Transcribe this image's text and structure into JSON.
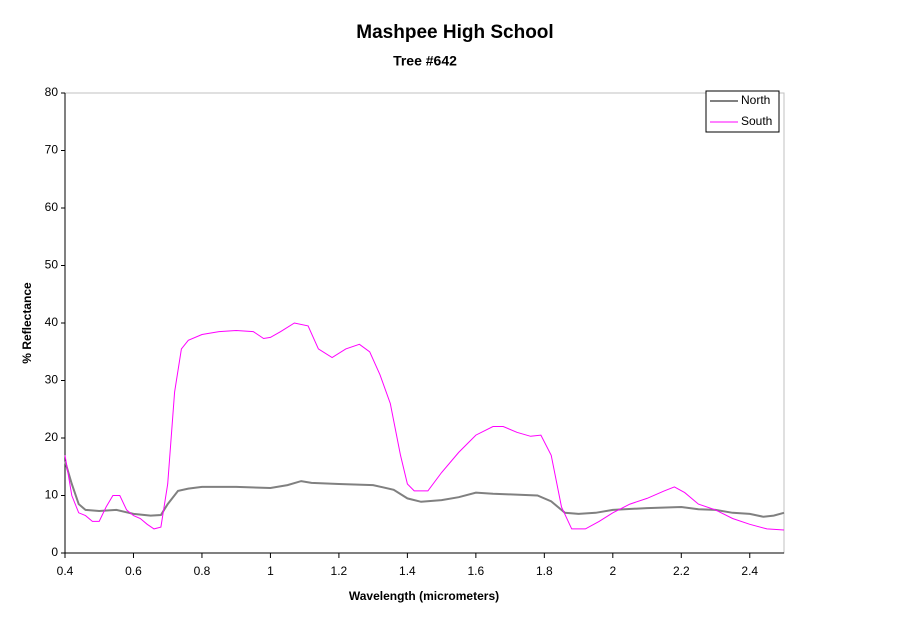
{
  "chart_data": {
    "type": "line",
    "title": "Mashpee High School",
    "subtitle": "Tree #642",
    "x_label": "Wavelength (micrometers)",
    "y_label": "% Reflectance",
    "xlim": [
      0.4,
      2.5
    ],
    "xticks": [
      0.4,
      0.6,
      0.8,
      1,
      1.2,
      1.4,
      1.6,
      1.8,
      2,
      2.2,
      2.4
    ],
    "ylim": [
      0,
      80
    ],
    "yticks": [
      0,
      10,
      20,
      30,
      40,
      50,
      60,
      70,
      80
    ],
    "legend": "top-right",
    "series": [
      {
        "name": "North",
        "color": "#808080",
        "width": 2,
        "x": [
          0.4,
          0.42,
          0.44,
          0.46,
          0.5,
          0.55,
          0.6,
          0.65,
          0.68,
          0.7,
          0.73,
          0.76,
          0.8,
          0.9,
          1.0,
          1.05,
          1.09,
          1.12,
          1.2,
          1.3,
          1.36,
          1.4,
          1.44,
          1.5,
          1.55,
          1.6,
          1.65,
          1.7,
          1.78,
          1.82,
          1.86,
          1.9,
          1.95,
          2.0,
          2.1,
          2.2,
          2.25,
          2.3,
          2.35,
          2.4,
          2.44,
          2.47,
          2.5
        ],
        "values": [
          16,
          12,
          8.5,
          7.5,
          7.3,
          7.5,
          6.8,
          6.5,
          6.6,
          8.5,
          10.8,
          11.2,
          11.5,
          11.5,
          11.3,
          11.8,
          12.5,
          12.2,
          12,
          11.8,
          11,
          9.5,
          8.9,
          9.2,
          9.7,
          10.5,
          10.3,
          10.2,
          10,
          9,
          7,
          6.8,
          7,
          7.5,
          7.8,
          8,
          7.6,
          7.5,
          7,
          6.8,
          6.3,
          6.5,
          7
        ]
      },
      {
        "name": "South",
        "color": "#ff00ff",
        "width": 1,
        "x": [
          0.4,
          0.42,
          0.44,
          0.46,
          0.48,
          0.5,
          0.52,
          0.54,
          0.56,
          0.58,
          0.6,
          0.62,
          0.64,
          0.66,
          0.68,
          0.7,
          0.72,
          0.74,
          0.76,
          0.8,
          0.85,
          0.9,
          0.95,
          0.98,
          1.0,
          1.03,
          1.07,
          1.11,
          1.14,
          1.18,
          1.22,
          1.26,
          1.29,
          1.32,
          1.35,
          1.38,
          1.4,
          1.42,
          1.46,
          1.5,
          1.55,
          1.6,
          1.65,
          1.68,
          1.72,
          1.76,
          1.79,
          1.82,
          1.85,
          1.88,
          1.92,
          1.96,
          2.0,
          2.05,
          2.1,
          2.15,
          2.18,
          2.21,
          2.25,
          2.3,
          2.35,
          2.4,
          2.45,
          2.5
        ],
        "values": [
          17,
          10,
          7,
          6.5,
          5.5,
          5.5,
          8,
          10,
          10,
          7.5,
          6.5,
          6,
          5,
          4.2,
          4.5,
          12,
          28,
          35.5,
          37,
          38,
          38.5,
          38.7,
          38.5,
          37.3,
          37.5,
          38.5,
          40,
          39.5,
          35.5,
          34,
          35.5,
          36.3,
          35,
          31,
          26,
          17,
          12,
          10.8,
          10.8,
          14,
          17.5,
          20.5,
          22,
          22,
          21,
          20.3,
          20.5,
          17,
          8,
          4.2,
          4.2,
          5.5,
          7,
          8.5,
          9.5,
          10.8,
          11.5,
          10.5,
          8.5,
          7.5,
          6,
          5,
          4.2,
          4
        ]
      }
    ]
  }
}
